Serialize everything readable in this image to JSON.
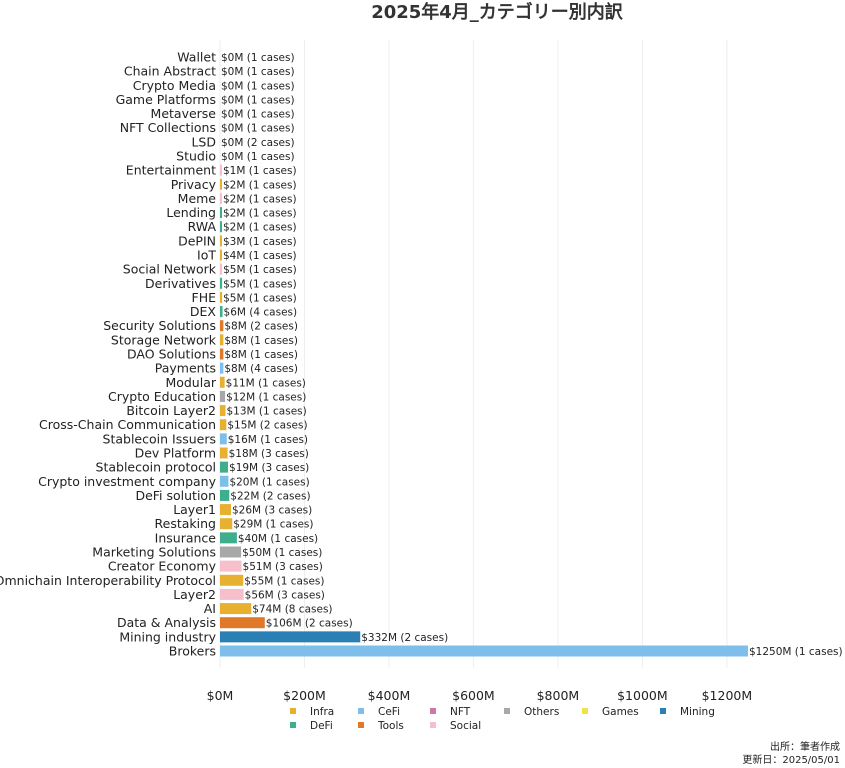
{
  "chart_data": {
    "type": "bar",
    "orientation": "horizontal",
    "title": "2025年4月_カテゴリー別内訳",
    "xlim": [
      0,
      1250
    ],
    "x_ticks": [
      "$0M",
      "$200M",
      "$400M",
      "$600M",
      "$800M",
      "$1000M",
      "$1200M"
    ],
    "x_tick_values": [
      0,
      200,
      400,
      600,
      800,
      1000,
      1200
    ],
    "grid": "vertical",
    "legend_position": "bottom",
    "legend": [
      {
        "name": "Infra",
        "color": "#E8B030"
      },
      {
        "name": "CeFi",
        "color": "#7DBFEA"
      },
      {
        "name": "NFT",
        "color": "#CC79A7"
      },
      {
        "name": "Others",
        "color": "#A8A8A8"
      },
      {
        "name": "Games",
        "color": "#F0E442"
      },
      {
        "name": "Mining",
        "color": "#2A7FB5"
      },
      {
        "name": "DeFi",
        "color": "#3FAE8C"
      },
      {
        "name": "Tools",
        "color": "#E0782A"
      },
      {
        "name": "Social",
        "color": "#F7BFCB"
      }
    ],
    "bars": [
      {
        "category": "Wallet",
        "value": 0,
        "label": "$0M (1 cases)",
        "group": "Infra"
      },
      {
        "category": "Chain Abstract",
        "value": 0,
        "label": "$0M (1 cases)",
        "group": "Infra"
      },
      {
        "category": "Crypto Media",
        "value": 0,
        "label": "$0M (1 cases)",
        "group": "Others"
      },
      {
        "category": "Game Platforms",
        "value": 0,
        "label": "$0M (1 cases)",
        "group": "Games"
      },
      {
        "category": "Metaverse",
        "value": 0,
        "label": "$0M (1 cases)",
        "group": "Games"
      },
      {
        "category": "NFT Collections",
        "value": 0,
        "label": "$0M (1 cases)",
        "group": "NFT"
      },
      {
        "category": "LSD",
        "value": 0,
        "label": "$0M (2 cases)",
        "group": "DeFi"
      },
      {
        "category": "Studio",
        "value": 0,
        "label": "$0M (1 cases)",
        "group": "Games"
      },
      {
        "category": "Entertainment",
        "value": 1,
        "label": "$1M (1 cases)",
        "group": "Social"
      },
      {
        "category": "Privacy",
        "value": 2,
        "label": "$2M (1 cases)",
        "group": "Infra"
      },
      {
        "category": "Meme",
        "value": 2,
        "label": "$2M (1 cases)",
        "group": "Social"
      },
      {
        "category": "Lending",
        "value": 2,
        "label": "$2M (1 cases)",
        "group": "DeFi"
      },
      {
        "category": "RWA",
        "value": 2,
        "label": "$2M (1 cases)",
        "group": "DeFi"
      },
      {
        "category": "DePIN",
        "value": 3,
        "label": "$3M (1 cases)",
        "group": "Infra"
      },
      {
        "category": "IoT",
        "value": 4,
        "label": "$4M (1 cases)",
        "group": "Infra"
      },
      {
        "category": "Social Network",
        "value": 5,
        "label": "$5M (1 cases)",
        "group": "Social"
      },
      {
        "category": "Derivatives",
        "value": 5,
        "label": "$5M (1 cases)",
        "group": "DeFi"
      },
      {
        "category": "FHE",
        "value": 5,
        "label": "$5M (1 cases)",
        "group": "Infra"
      },
      {
        "category": "DEX",
        "value": 6,
        "label": "$6M (4 cases)",
        "group": "DeFi"
      },
      {
        "category": "Security Solutions",
        "value": 8,
        "label": "$8M (2 cases)",
        "group": "Tools"
      },
      {
        "category": "Storage Network",
        "value": 8,
        "label": "$8M (1 cases)",
        "group": "Infra"
      },
      {
        "category": "DAO Solutions",
        "value": 8,
        "label": "$8M (1 cases)",
        "group": "Tools"
      },
      {
        "category": "Payments",
        "value": 8,
        "label": "$8M (4 cases)",
        "group": "CeFi"
      },
      {
        "category": "Modular",
        "value": 11,
        "label": "$11M (1 cases)",
        "group": "Infra"
      },
      {
        "category": "Crypto Education",
        "value": 12,
        "label": "$12M (1 cases)",
        "group": "Others"
      },
      {
        "category": "Bitcoin Layer2",
        "value": 13,
        "label": "$13M (1 cases)",
        "group": "Infra"
      },
      {
        "category": "Cross-Chain Communication",
        "value": 15,
        "label": "$15M (2 cases)",
        "group": "Infra"
      },
      {
        "category": "Stablecoin Issuers",
        "value": 16,
        "label": "$16M (1 cases)",
        "group": "CeFi"
      },
      {
        "category": "Dev Platform",
        "value": 18,
        "label": "$18M (3 cases)",
        "group": "Infra"
      },
      {
        "category": "Stablecoin protocol",
        "value": 19,
        "label": "$19M (3 cases)",
        "group": "DeFi"
      },
      {
        "category": "Crypto investment company",
        "value": 20,
        "label": "$20M (1 cases)",
        "group": "CeFi"
      },
      {
        "category": "DeFi solution",
        "value": 22,
        "label": "$22M (2 cases)",
        "group": "DeFi"
      },
      {
        "category": "Layer1",
        "value": 26,
        "label": "$26M (3 cases)",
        "group": "Infra"
      },
      {
        "category": "Restaking",
        "value": 29,
        "label": "$29M (1 cases)",
        "group": "Infra"
      },
      {
        "category": "Insurance",
        "value": 40,
        "label": "$40M (1 cases)",
        "group": "DeFi"
      },
      {
        "category": "Marketing Solutions",
        "value": 50,
        "label": "$50M (1 cases)",
        "group": "Others"
      },
      {
        "category": "Creator Economy",
        "value": 51,
        "label": "$51M (3 cases)",
        "group": "Social"
      },
      {
        "category": "Omnichain Interoperability Protocol",
        "value": 55,
        "label": "$55M (1 cases)",
        "group": "Infra"
      },
      {
        "category": "Layer2",
        "value": 56,
        "label": "$56M (3 cases)",
        "group": "Social"
      },
      {
        "category": "AI",
        "value": 74,
        "label": "$74M (8 cases)",
        "group": "Infra"
      },
      {
        "category": "Data & Analysis",
        "value": 106,
        "label": "$106M (2 cases)",
        "group": "Tools"
      },
      {
        "category": "Mining industry",
        "value": 332,
        "label": "$332M (2 cases)",
        "group": "Mining"
      },
      {
        "category": "Brokers",
        "value": 1250,
        "label": "$1250M (1 cases)",
        "group": "CeFi"
      }
    ]
  },
  "footer": {
    "source": "出所：筆者作成",
    "updated": "更新日：2025/05/01"
  }
}
